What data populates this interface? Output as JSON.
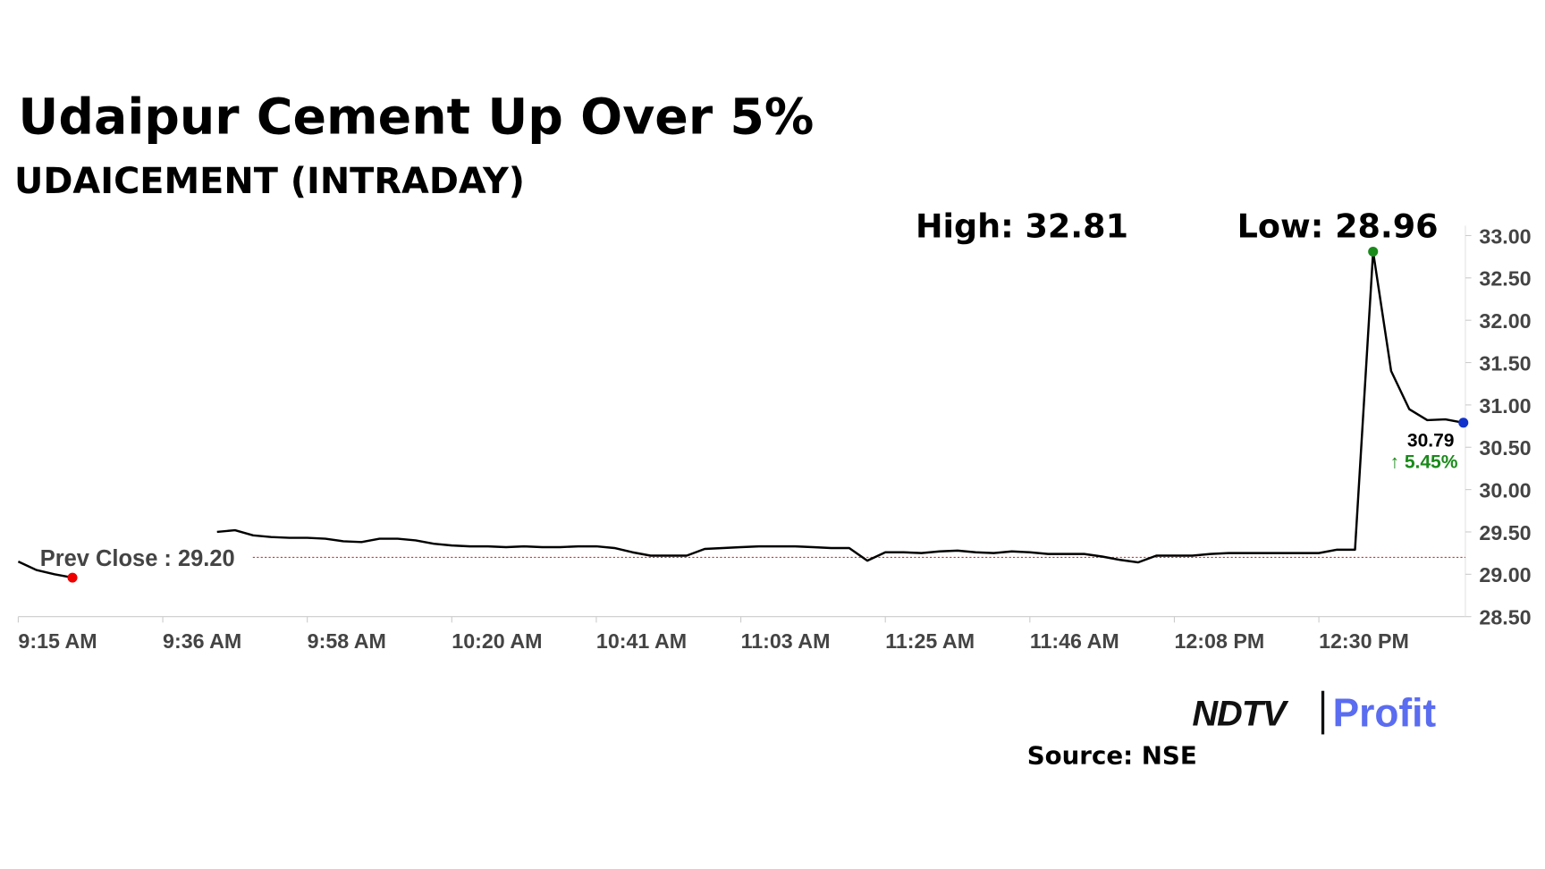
{
  "chart_data": {
    "type": "line",
    "title": "Udaipur Cement Up Over 5%",
    "subtitle": "UDAICEMENT (INTRADAY)",
    "high_label": "High: 32.81",
    "low_label": "Low: 28.96",
    "prev_close": {
      "value": 29.2,
      "label": "Prev Close : 29.20"
    },
    "last_value_label": "30.79",
    "change_label": "↑ 5.45%",
    "source": "Source: NSE",
    "logo": {
      "left": "NDTV",
      "right": "Profit"
    },
    "categories": [
      "9:15 AM",
      null,
      null,
      null,
      null,
      null,
      null,
      null,
      "9:36 AM",
      null,
      null,
      null,
      null,
      null,
      null,
      null,
      "9:58 AM",
      null,
      null,
      null,
      null,
      null,
      null,
      null,
      "10:20 AM",
      null,
      null,
      null,
      null,
      null,
      null,
      null,
      "10:41 AM",
      null,
      null,
      null,
      null,
      null,
      null,
      null,
      "11:03 AM",
      null,
      null,
      null,
      null,
      null,
      null,
      null,
      "11:25 AM",
      null,
      null,
      null,
      null,
      null,
      null,
      null,
      "11:46 AM",
      null,
      null,
      null,
      null,
      null,
      null,
      null,
      "12:08 PM",
      null,
      null,
      null,
      null,
      null,
      null,
      null,
      "12:30 PM",
      null,
      null,
      null,
      null,
      null,
      null,
      null,
      null
    ],
    "series": [
      {
        "name": "UDAICEMENT",
        "color": "#000000",
        "values": [
          29.15,
          29.05,
          29.0,
          28.96,
          null,
          null,
          null,
          null,
          null,
          null,
          null,
          29.5,
          29.52,
          29.46,
          29.44,
          29.43,
          29.43,
          29.42,
          29.39,
          29.38,
          29.42,
          29.42,
          29.4,
          29.36,
          29.34,
          29.33,
          29.33,
          29.32,
          29.33,
          29.32,
          29.32,
          29.33,
          29.33,
          29.31,
          29.26,
          29.22,
          29.22,
          29.22,
          29.3,
          29.31,
          29.32,
          29.33,
          29.33,
          29.33,
          29.32,
          29.31,
          29.31,
          29.16,
          29.26,
          29.26,
          29.25,
          29.27,
          29.28,
          29.26,
          29.25,
          29.27,
          29.26,
          29.24,
          29.24,
          29.24,
          29.21,
          29.17,
          29.14,
          29.22,
          29.22,
          29.22,
          29.24,
          29.25,
          29.25,
          29.25,
          29.25,
          29.25,
          29.25,
          29.29,
          29.29,
          32.81,
          31.4,
          30.95,
          30.82,
          30.83,
          30.79
        ]
      }
    ],
    "high_index": 75,
    "low_index": 3,
    "ylim": [
      28.5,
      33.0
    ],
    "yticks": [
      {
        "value": 28.5,
        "label": "28.50"
      },
      {
        "value": 29,
        "label": "29.00"
      },
      {
        "value": 29.5,
        "label": "29.50"
      },
      {
        "value": 30,
        "label": "30.00"
      },
      {
        "value": 30.5,
        "label": "30.50"
      },
      {
        "value": 31,
        "label": "31.00"
      },
      {
        "value": 31.5,
        "label": "31.50"
      },
      {
        "value": 32,
        "label": "32.00"
      },
      {
        "value": 32.5,
        "label": "32.50"
      },
      {
        "value": 33,
        "label": "33.00"
      }
    ],
    "grid": false
  }
}
